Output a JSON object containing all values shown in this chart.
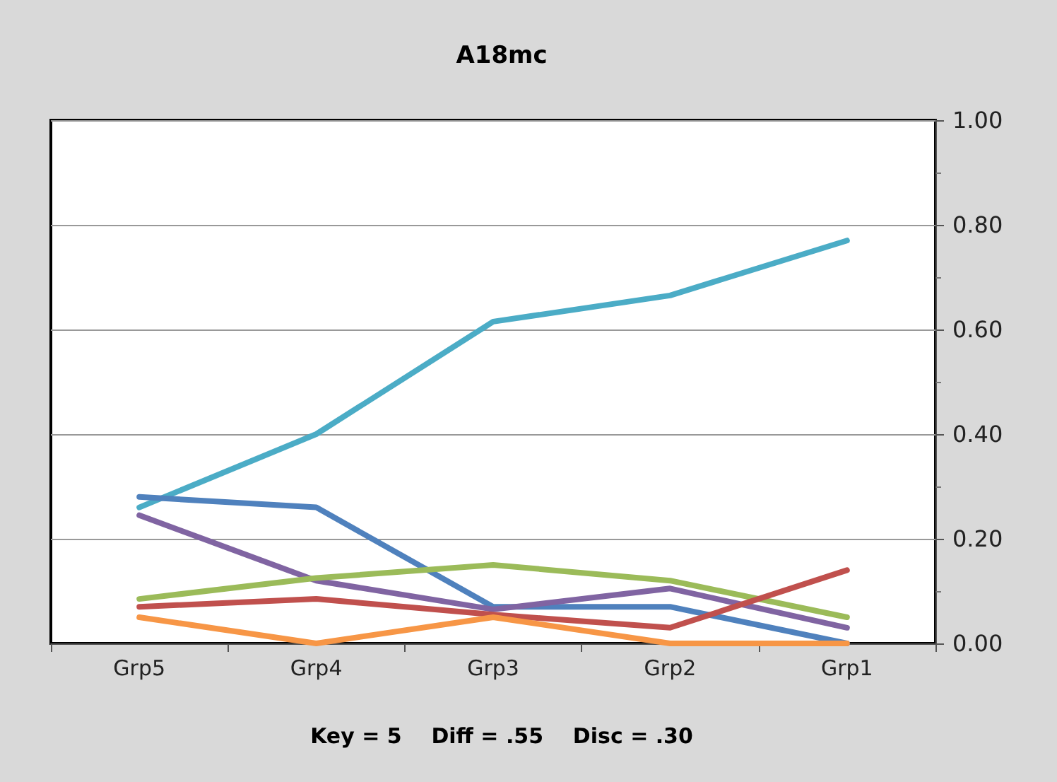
{
  "chart_data": {
    "type": "line",
    "title": "A18mc",
    "annotations": [
      "Key = 5    Diff = .55    Disc = .30"
    ],
    "categories": [
      "Grp5",
      "Grp4",
      "Grp3",
      "Grp2",
      "Grp1"
    ],
    "series": [
      {
        "color": "#4bacc6",
        "values": [
          0.26,
          0.4,
          0.615,
          0.665,
          0.77
        ]
      },
      {
        "color": "#4f81bd",
        "values": [
          0.28,
          0.26,
          0.07,
          0.07,
          0
        ]
      },
      {
        "color": "#8064a2",
        "values": [
          0.245,
          0.12,
          0.065,
          0.105,
          0.03
        ]
      },
      {
        "color": "#9bbb59",
        "values": [
          0.085,
          0.125,
          0.15,
          0.12,
          0.05
        ]
      },
      {
        "color": "#c0504d",
        "values": [
          0.07,
          0.085,
          0.055,
          0.03,
          0.14
        ]
      },
      {
        "color": "#f79646",
        "values": [
          0.05,
          0,
          0.05,
          0,
          0
        ]
      }
    ],
    "ylim": [
      0,
      1
    ],
    "yticks": [
      {
        "value": 0,
        "label": "0.00"
      },
      {
        "value": 0.2,
        "label": "0.20"
      },
      {
        "value": 0.4,
        "label": "0.40"
      },
      {
        "value": 0.6,
        "label": "0.60"
      },
      {
        "value": 0.8,
        "label": "0.80"
      },
      {
        "value": 1,
        "label": "1.00"
      }
    ],
    "grid": "y",
    "marker": "none",
    "line_style": "solid"
  }
}
